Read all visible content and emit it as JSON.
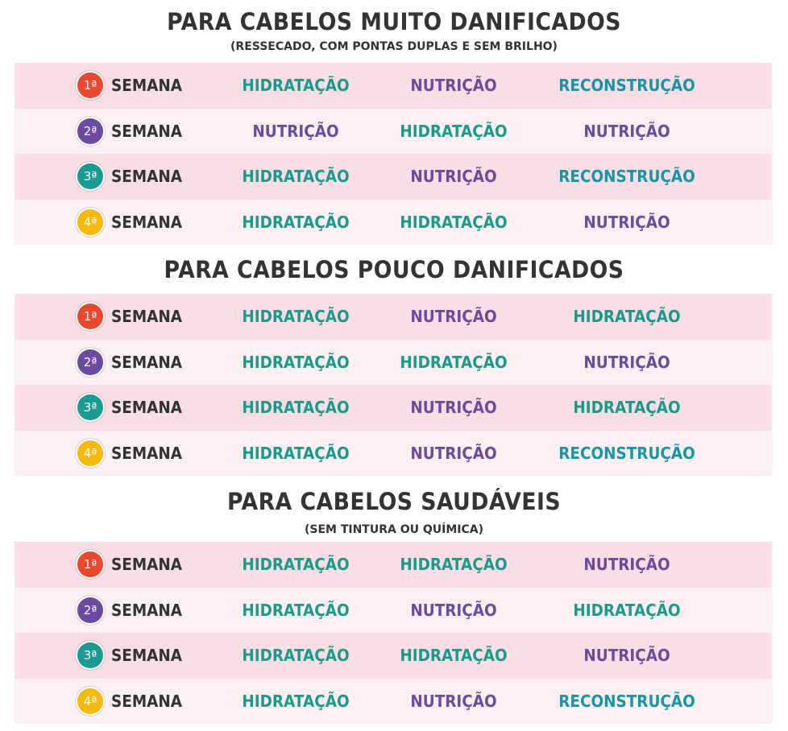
{
  "colors": {
    "HIDRATAÇÃO": "#1a9a8a",
    "NUTRIÇÃO": "#6c4b9e",
    "RECONSTRUÇÃO": "#1894a8",
    "badges": [
      "#e9482e",
      "#6b4a9f",
      "#1a9a90",
      "#f6b90c"
    ]
  },
  "week_label": "SEMANA",
  "badges": [
    "1ª",
    "2ª",
    "3ª",
    "4ª"
  ],
  "sections": [
    {
      "title": "PARA CABELOS MUITO DANIFICADOS",
      "subtitle": "(RESSECADO, COM PONTAS DUPLAS E SEM BRILHO)",
      "rows": [
        [
          "HIDRATAÇÃO",
          "NUTRIÇÃO",
          "RECONSTRUÇÃO"
        ],
        [
          "NUTRIÇÃO",
          "HIDRATAÇÃO",
          "NUTRIÇÃO"
        ],
        [
          "HIDRATAÇÃO",
          "NUTRIÇÃO",
          "RECONSTRUÇÃO"
        ],
        [
          "HIDRATAÇÃO",
          "HIDRATAÇÃO",
          "NUTRIÇÃO"
        ]
      ]
    },
    {
      "title": "PARA CABELOS POUCO DANIFICADOS",
      "subtitle": "",
      "rows": [
        [
          "HIDRATAÇÃO",
          "NUTRIÇÃO",
          "HIDRATAÇÃO"
        ],
        [
          "HIDRATAÇÃO",
          "HIDRATAÇÃO",
          "NUTRIÇÃO"
        ],
        [
          "HIDRATAÇÃO",
          "NUTRIÇÃO",
          "HIDRATAÇÃO"
        ],
        [
          "HIDRATAÇÃO",
          "NUTRIÇÃO",
          "RECONSTRUÇÃO"
        ]
      ]
    },
    {
      "title": "PARA CABELOS SAUDÁVEIS",
      "subtitle": "(SEM TINTURA OU QUÍMICA)",
      "rows": [
        [
          "HIDRATAÇÃO",
          "HIDRATAÇÃO",
          "NUTRIÇÃO"
        ],
        [
          "HIDRATAÇÃO",
          "NUTRIÇÃO",
          "HIDRATAÇÃO"
        ],
        [
          "HIDRATAÇÃO",
          "HIDRATAÇÃO",
          "NUTRIÇÃO"
        ],
        [
          "HIDRATAÇÃO",
          "NUTRIÇÃO",
          "RECONSTRUÇÃO"
        ]
      ]
    }
  ]
}
